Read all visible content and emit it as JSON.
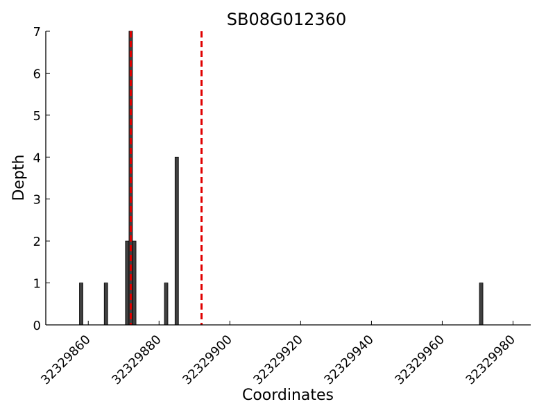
{
  "chart_data": {
    "type": "bar",
    "title": "SB08G012360",
    "xlabel": "Coordinates",
    "ylabel": "Depth",
    "xlim": [
      32329848,
      32329985
    ],
    "ylim": [
      0,
      7
    ],
    "xticks": [
      32329860,
      32329880,
      32329900,
      32329920,
      32329940,
      32329960,
      32329980
    ],
    "yticks": [
      0,
      1,
      2,
      3,
      4,
      5,
      6,
      7
    ],
    "x": [
      32329858,
      32329865,
      32329871,
      32329872,
      32329873,
      32329882,
      32329885,
      32329971
    ],
    "values": [
      1,
      1,
      2,
      7,
      2,
      1,
      4,
      1
    ],
    "markers": [
      32329872,
      32329892
    ],
    "colors": {
      "bar": "#404040",
      "bar_edge": "#000000",
      "marker": "#e00000"
    },
    "grid": false
  }
}
